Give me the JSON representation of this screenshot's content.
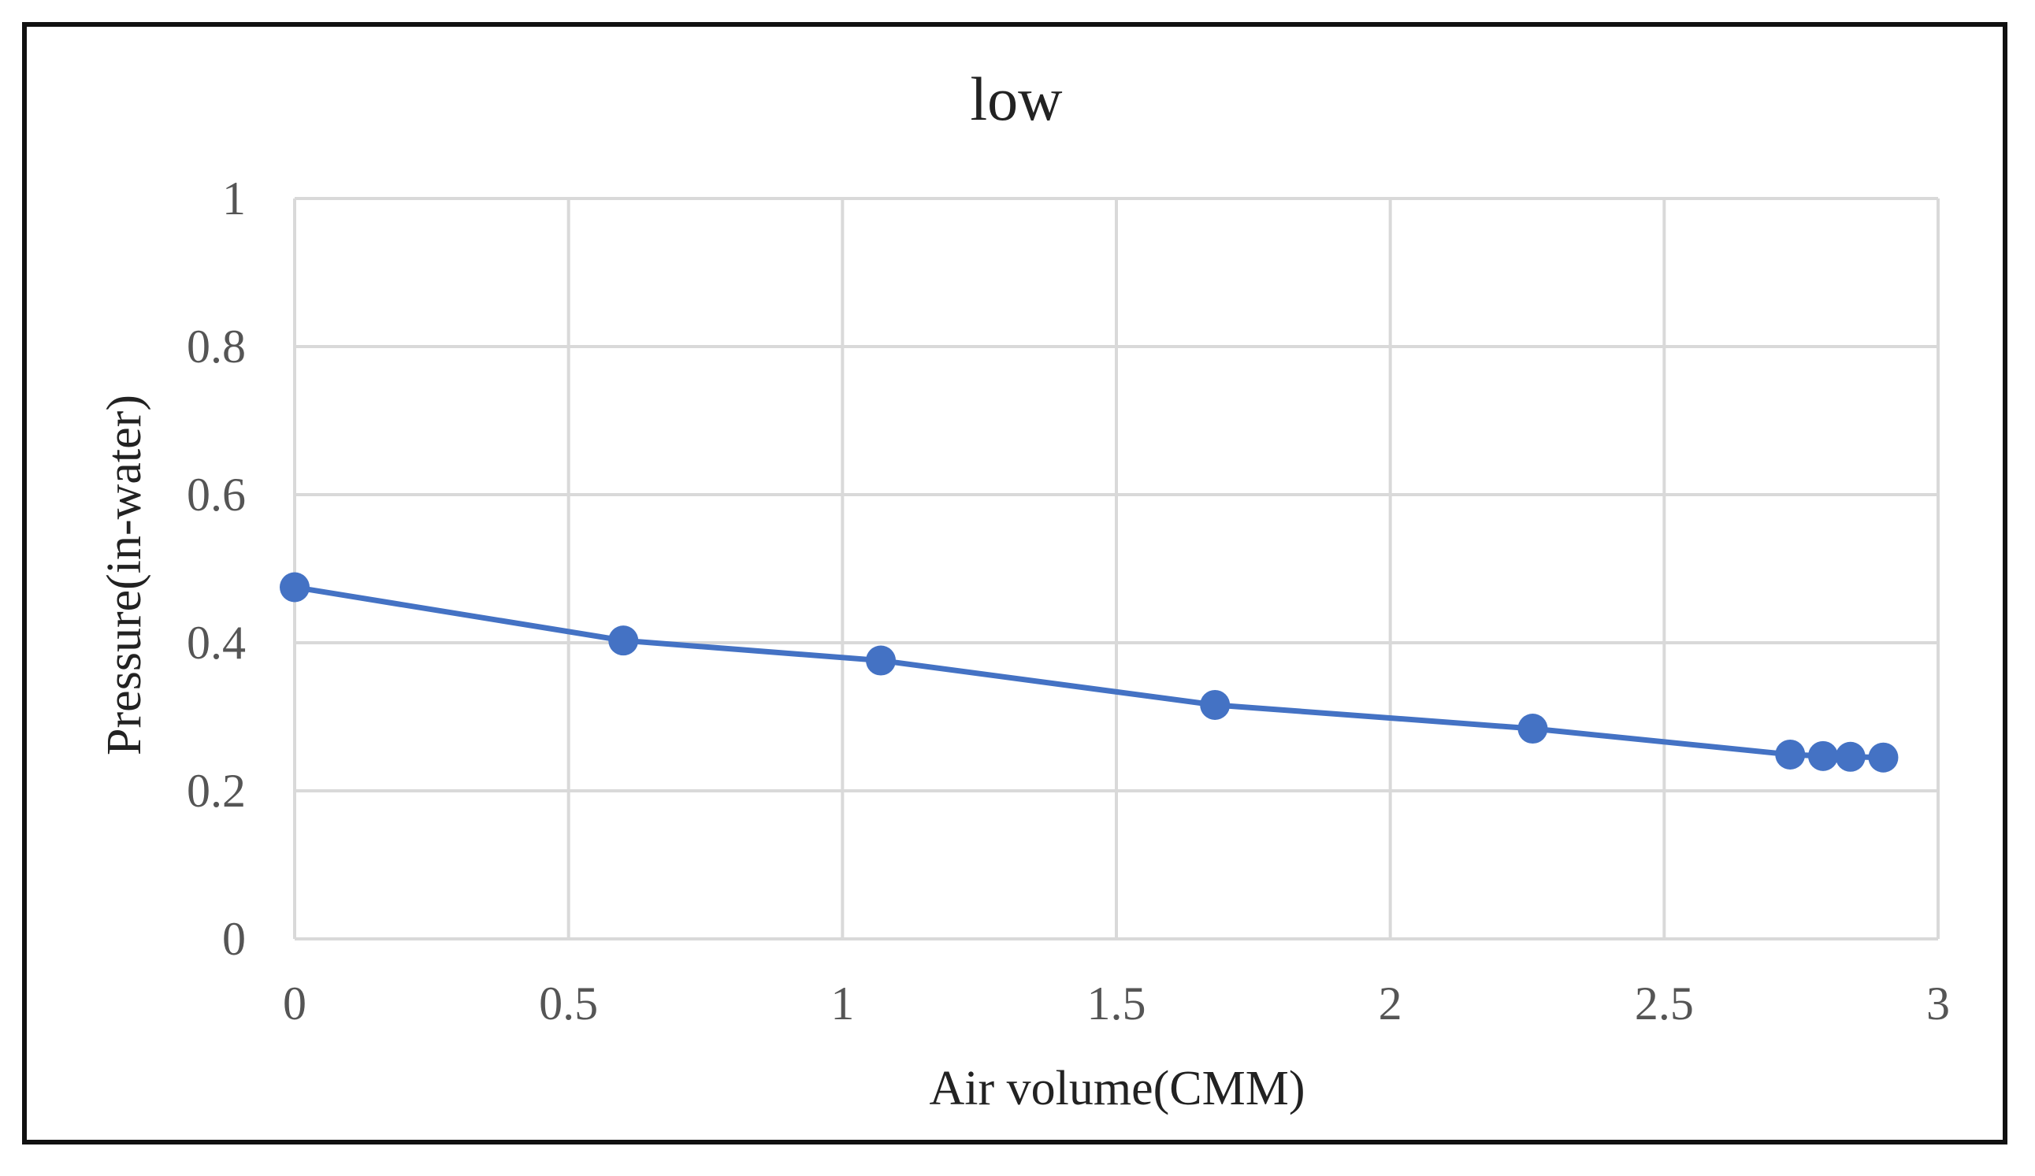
{
  "chart_data": {
    "type": "line",
    "title": "low",
    "xlabel": "Air volume(CMM)",
    "ylabel": "Pressure(in-water)",
    "xlim": [
      0,
      3
    ],
    "ylim": [
      0,
      1
    ],
    "x_ticks": [
      "0",
      "0.5",
      "1",
      "1.5",
      "2",
      "2.5",
      "3"
    ],
    "y_ticks": [
      "0",
      "0.2",
      "0.4",
      "0.6",
      "0.8",
      "1"
    ],
    "grid": true,
    "legend": "none",
    "series": [
      {
        "color": "#4472c4",
        "marker": "circle",
        "x": [
          0,
          0.6,
          1.07,
          1.68,
          2.26,
          2.73,
          2.79,
          2.84,
          2.9
        ],
        "y": [
          0.475,
          0.403,
          0.376,
          0.316,
          0.284,
          0.249,
          0.247,
          0.246,
          0.245
        ]
      }
    ]
  }
}
